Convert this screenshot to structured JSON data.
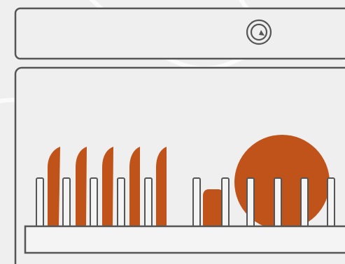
{
  "colors": {
    "background": "#efefef",
    "panel_fill": "#efefef",
    "outline": "#555555",
    "rack_fill": "#f4f4f4",
    "dish": "#c0531a",
    "knob_outline": "#555555",
    "texture_line": "#ffffff"
  },
  "icons": {
    "knob": "control-knob-icon",
    "plates": "plate-icon",
    "cup": "cup-icon",
    "big_plate": "large-plate-icon"
  }
}
